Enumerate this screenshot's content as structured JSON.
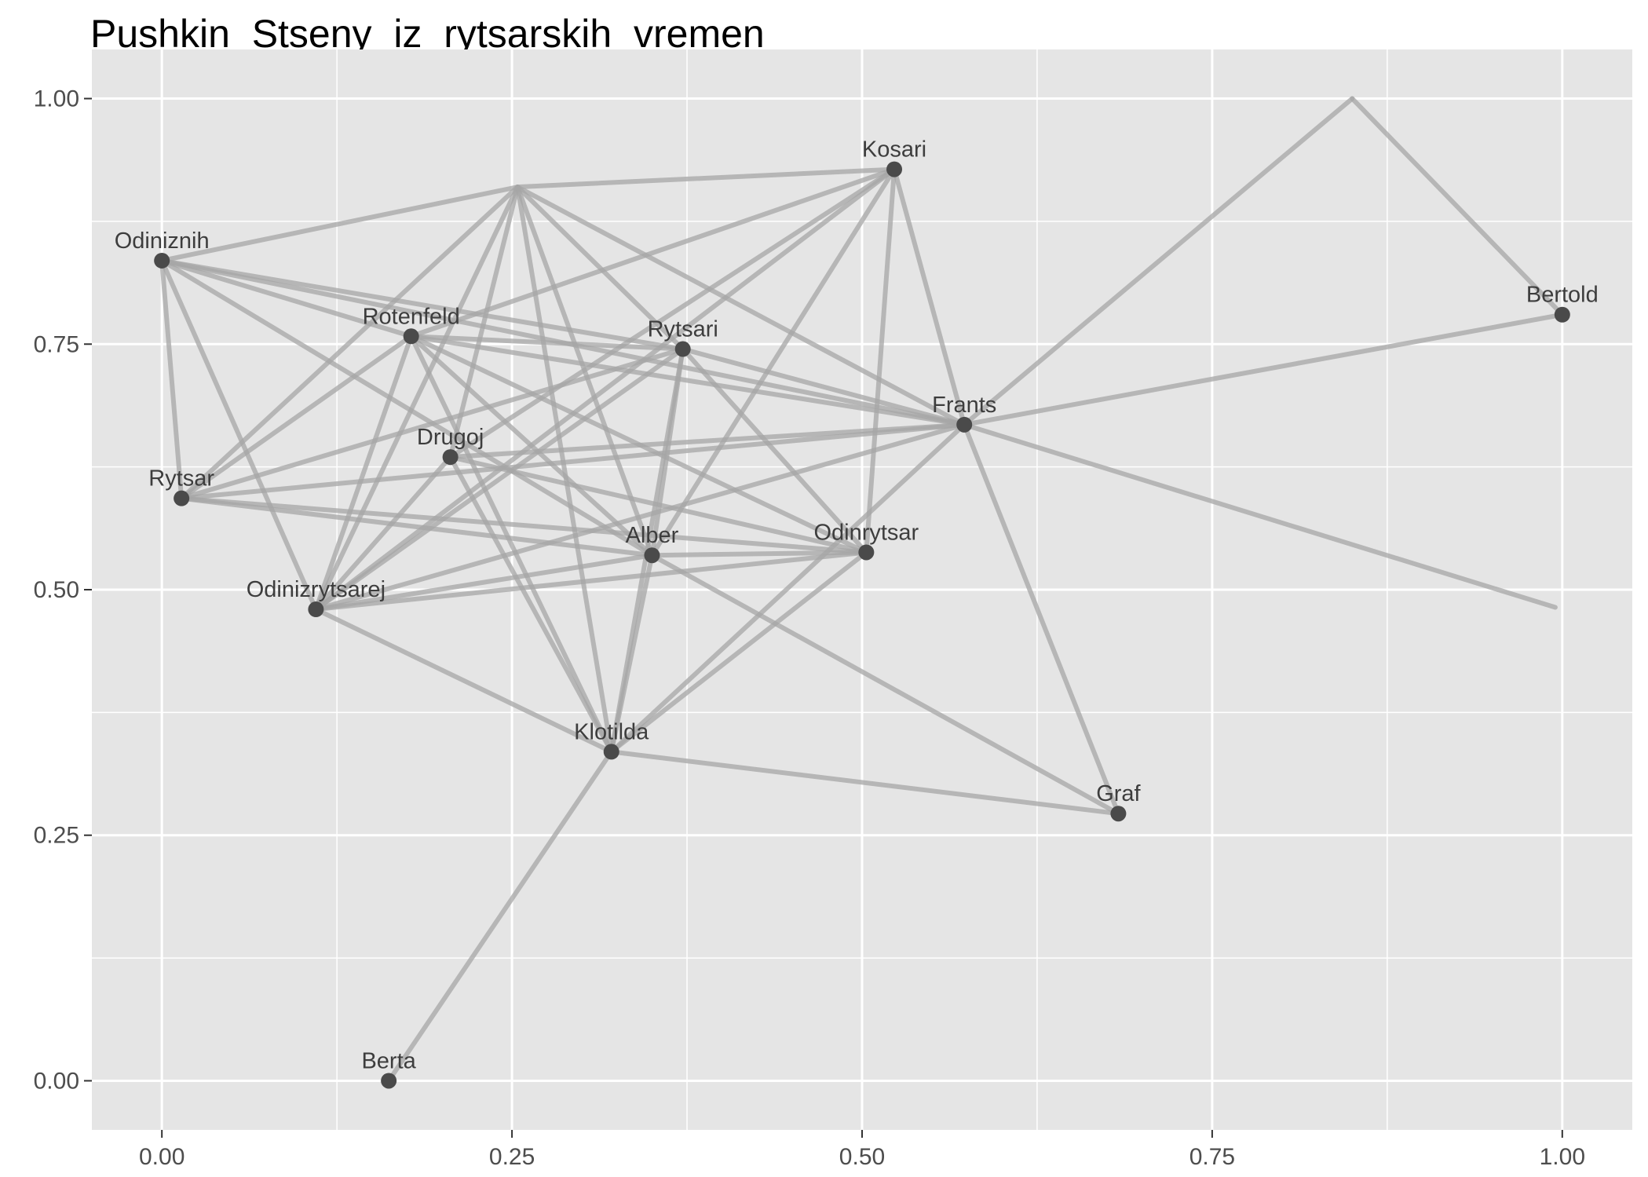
{
  "chart_data": {
    "type": "scatter",
    "title": "Pushkin_Stseny_iz_rytsarskih_vremen",
    "xlabel": "",
    "ylabel": "",
    "xlim": [
      -0.05,
      1.05
    ],
    "ylim": [
      -0.05,
      1.05
    ],
    "x_ticks": [
      "0.00",
      "0.25",
      "0.50",
      "0.75",
      "1.00"
    ],
    "y_ticks": [
      "0.00",
      "0.25",
      "0.50",
      "0.75",
      "1.00"
    ],
    "grid": true,
    "colors": {
      "panel": "#e5e5e5",
      "grid": "#ffffff",
      "edge": "#a6a6a6",
      "node": "#4a4a4a"
    },
    "nodes": [
      {
        "name": "Kosari",
        "x": 0.523,
        "y": 0.928
      },
      {
        "name": "Odiniznih",
        "x": 0.0,
        "y": 0.835
      },
      {
        "name": "Bertold",
        "x": 1.0,
        "y": 0.78
      },
      {
        "name": "Rotenfeld",
        "x": 0.178,
        "y": 0.758
      },
      {
        "name": "Rytsari",
        "x": 0.372,
        "y": 0.745
      },
      {
        "name": "Frants",
        "x": 0.573,
        "y": 0.668
      },
      {
        "name": "Drugoj",
        "x": 0.206,
        "y": 0.635
      },
      {
        "name": "Rytsar",
        "x": 0.014,
        "y": 0.593
      },
      {
        "name": "Alber",
        "x": 0.35,
        "y": 0.535
      },
      {
        "name": "Odinrytsar",
        "x": 0.503,
        "y": 0.538
      },
      {
        "name": "Odinizrytsarej",
        "x": 0.11,
        "y": 0.48
      },
      {
        "name": "Klotilda",
        "x": 0.321,
        "y": 0.335
      },
      {
        "name": "Graf",
        "x": 0.683,
        "y": 0.272
      },
      {
        "name": "Berta",
        "x": 0.162,
        "y": 0.0
      }
    ],
    "unlabeled_points": [
      {
        "id": "p1",
        "x": 0.254,
        "y": 0.91
      },
      {
        "id": "p2",
        "x": 0.85,
        "y": 1.0
      },
      {
        "id": "p3",
        "x": 0.995,
        "y": 0.482
      }
    ],
    "edges": [
      [
        "Odiniznih",
        "p1"
      ],
      [
        "p1",
        "Kosari"
      ],
      [
        "p1",
        "Frants"
      ],
      [
        "p1",
        "Rytsari"
      ],
      [
        "p1",
        "Drugoj"
      ],
      [
        "p1",
        "Odinizrytsarej"
      ],
      [
        "p1",
        "Rytsar"
      ],
      [
        "p1",
        "Klotilda"
      ],
      [
        "p1",
        "Alber"
      ],
      [
        "Kosari",
        "Rotenfeld"
      ],
      [
        "Kosari",
        "Frants"
      ],
      [
        "Kosari",
        "Odinrytsar"
      ],
      [
        "Kosari",
        "Alber"
      ],
      [
        "Kosari",
        "Odinizrytsarej"
      ],
      [
        "Kosari",
        "Drugoj"
      ],
      [
        "Odiniznih",
        "Rotenfeld"
      ],
      [
        "Odiniznih",
        "Rytsari"
      ],
      [
        "Odiniznih",
        "Frants"
      ],
      [
        "Odiniznih",
        "Rytsar"
      ],
      [
        "Odiniznih",
        "Odinizrytsarej"
      ],
      [
        "Odiniznih",
        "Alber"
      ],
      [
        "Rotenfeld",
        "Rytsari"
      ],
      [
        "Rotenfeld",
        "Frants"
      ],
      [
        "Rotenfeld",
        "Rytsar"
      ],
      [
        "Rotenfeld",
        "Odinizrytsarej"
      ],
      [
        "Rotenfeld",
        "Alber"
      ],
      [
        "Rotenfeld",
        "Odinrytsar"
      ],
      [
        "Rotenfeld",
        "Klotilda"
      ],
      [
        "Rytsari",
        "Frants"
      ],
      [
        "Rytsari",
        "Alber"
      ],
      [
        "Rytsari",
        "Odinrytsar"
      ],
      [
        "Rytsari",
        "Rytsar"
      ],
      [
        "Rytsari",
        "Odinizrytsarej"
      ],
      [
        "Rytsari",
        "Klotilda"
      ],
      [
        "Frants",
        "Rytsar"
      ],
      [
        "Frants",
        "Drugoj"
      ],
      [
        "Frants",
        "Odinizrytsarej"
      ],
      [
        "Frants",
        "Klotilda"
      ],
      [
        "Frants",
        "Graf"
      ],
      [
        "Frants",
        "Bertold"
      ],
      [
        "Frants",
        "p2"
      ],
      [
        "p2",
        "Bertold"
      ],
      [
        "Frants",
        "p3"
      ],
      [
        "Drugoj",
        "Odinrytsar"
      ],
      [
        "Drugoj",
        "Klotilda"
      ],
      [
        "Drugoj",
        "Odinizrytsarej"
      ],
      [
        "Rytsar",
        "Alber"
      ],
      [
        "Rytsar",
        "Odinrytsar"
      ],
      [
        "Alber",
        "Odinrytsar"
      ],
      [
        "Alber",
        "Odinizrytsarej"
      ],
      [
        "Alber",
        "Klotilda"
      ],
      [
        "Alber",
        "Graf"
      ],
      [
        "Odinrytsar",
        "Odinizrytsarej"
      ],
      [
        "Odinrytsar",
        "Klotilda"
      ],
      [
        "Odinizrytsarej",
        "Klotilda"
      ],
      [
        "Klotilda",
        "Graf"
      ],
      [
        "Klotilda",
        "Berta"
      ]
    ]
  }
}
